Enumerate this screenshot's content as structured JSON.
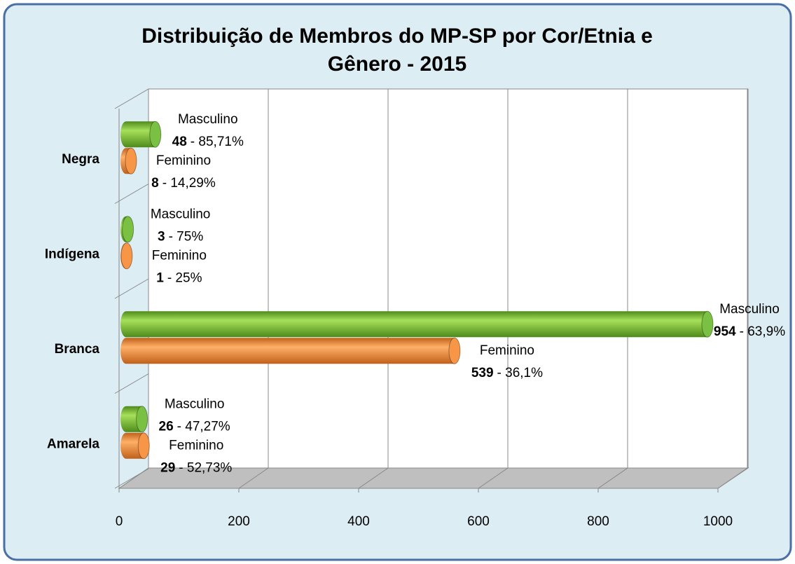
{
  "chart_data": {
    "type": "bar",
    "orientation": "horizontal",
    "style": "3d-cylinder",
    "title": "Distribuição de Membros do MP-SP por Cor/Etnia e Gênero - 2015",
    "categories": [
      "Negra",
      "Indígena",
      "Branca",
      "Amarela"
    ],
    "series": [
      {
        "name": "Masculino",
        "color": "#7ac143",
        "values": [
          48,
          3,
          954,
          26
        ],
        "percent_labels": [
          "- 85,71%",
          "- 75%",
          "- 63,9%",
          "- 47,27%"
        ]
      },
      {
        "name": "Feminino",
        "color": "#f79646",
        "values": [
          8,
          1,
          539,
          29
        ],
        "percent_labels": [
          "- 14,29%",
          "- 25%",
          "- 36,1%",
          "- 52,73%"
        ]
      }
    ],
    "xlim": [
      0,
      1000
    ],
    "xticks": [
      0,
      200,
      400,
      600,
      800,
      1000
    ],
    "grid": true
  }
}
